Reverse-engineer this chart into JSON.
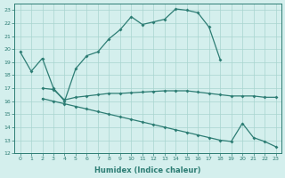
{
  "line1_x": [
    0,
    1,
    2,
    3,
    4,
    5,
    6,
    7,
    8,
    9,
    10,
    11,
    12,
    13,
    14,
    15,
    16,
    17,
    18
  ],
  "line1_y": [
    19.8,
    18.3,
    19.3,
    17.0,
    16.0,
    18.5,
    19.5,
    19.8,
    20.8,
    21.5,
    22.5,
    21.9,
    22.1,
    22.3,
    23.1,
    23.0,
    22.8,
    21.7,
    19.2
  ],
  "line2_x": [
    2,
    3,
    4,
    5,
    6,
    7,
    8,
    9,
    10,
    11,
    12,
    13,
    14,
    15,
    16,
    17,
    18,
    19,
    20,
    21,
    22,
    23
  ],
  "line2_y": [
    17.0,
    16.9,
    16.1,
    16.3,
    16.4,
    16.5,
    16.6,
    16.6,
    16.65,
    16.7,
    16.75,
    16.8,
    16.8,
    16.8,
    16.7,
    16.6,
    16.5,
    16.4,
    16.4,
    16.4,
    16.3,
    16.3
  ],
  "line3_x": [
    2,
    3,
    4,
    5,
    6,
    7,
    8,
    9,
    10,
    11,
    12,
    13,
    14,
    15,
    16,
    17,
    18,
    19,
    20,
    21,
    22,
    23
  ],
  "line3_y": [
    16.2,
    16.0,
    15.8,
    15.6,
    15.4,
    15.2,
    15.0,
    14.8,
    14.6,
    14.4,
    14.2,
    14.0,
    13.8,
    13.6,
    13.4,
    13.2,
    13.0,
    12.9,
    14.3,
    13.2,
    12.9,
    12.5
  ],
  "color": "#2d7d74",
  "bg_color": "#d4efed",
  "grid_color": "#a8d5cf",
  "xlabel": "Humidex (Indice chaleur)",
  "ylim": [
    12,
    23.5
  ],
  "xlim": [
    -0.5,
    23.5
  ],
  "yticks": [
    12,
    13,
    14,
    15,
    16,
    17,
    18,
    19,
    20,
    21,
    22,
    23
  ],
  "xticks": [
    0,
    1,
    2,
    3,
    4,
    5,
    6,
    7,
    8,
    9,
    10,
    11,
    12,
    13,
    14,
    15,
    16,
    17,
    18,
    19,
    20,
    21,
    22,
    23
  ]
}
